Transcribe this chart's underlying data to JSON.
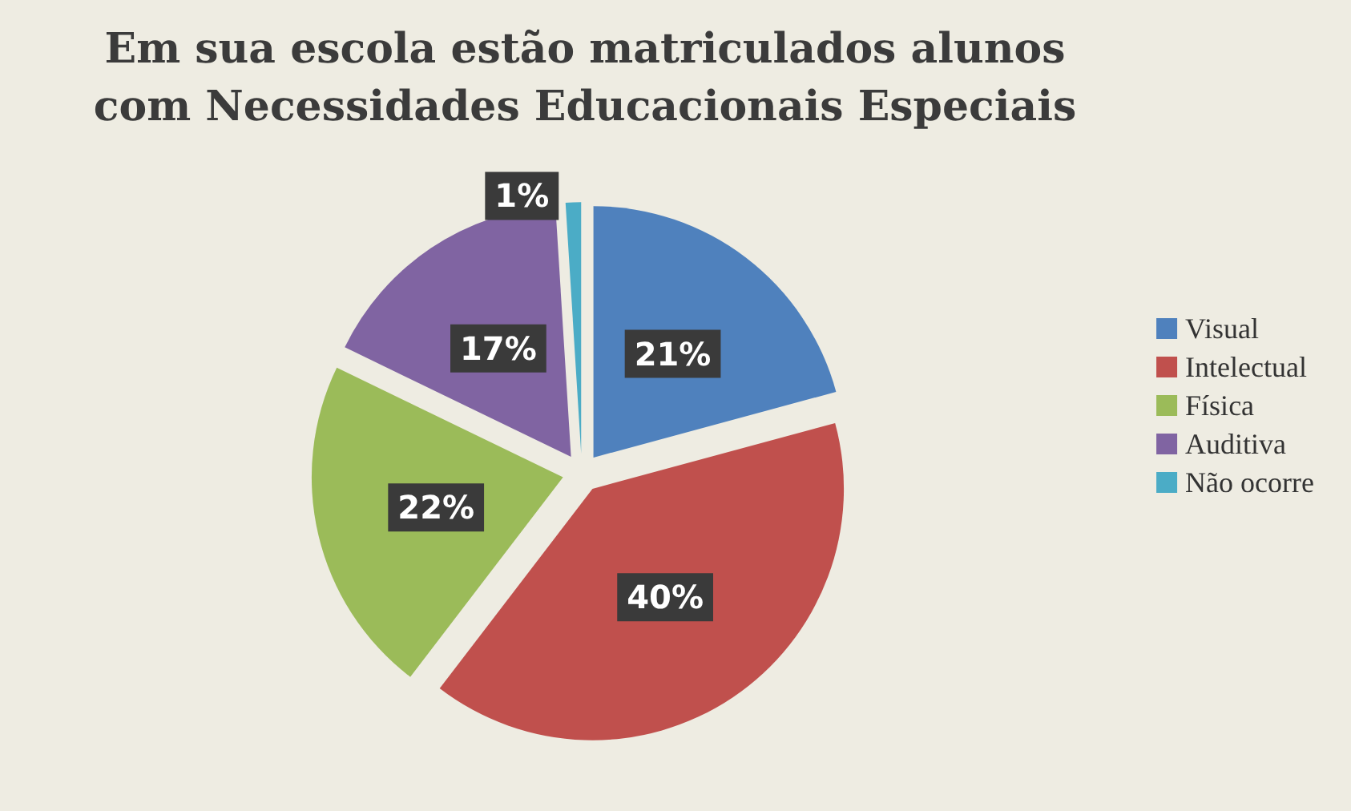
{
  "chart_data": {
    "type": "pie",
    "title": "Em sua escola estão matriculados alunos\ncom Necessidades Educacionais Especiais",
    "categories": [
      "Visual",
      "Intelectual",
      "Física",
      "Auditiva",
      "Não ocorre"
    ],
    "values": [
      21,
      40,
      22,
      17,
      1
    ],
    "colors": [
      "#4f81bd",
      "#c0504d",
      "#9bbb59",
      "#8064a2",
      "#4bacc6"
    ],
    "value_labels": [
      "21%",
      "40%",
      "22%",
      "17%",
      "1%"
    ],
    "legend": "right"
  }
}
